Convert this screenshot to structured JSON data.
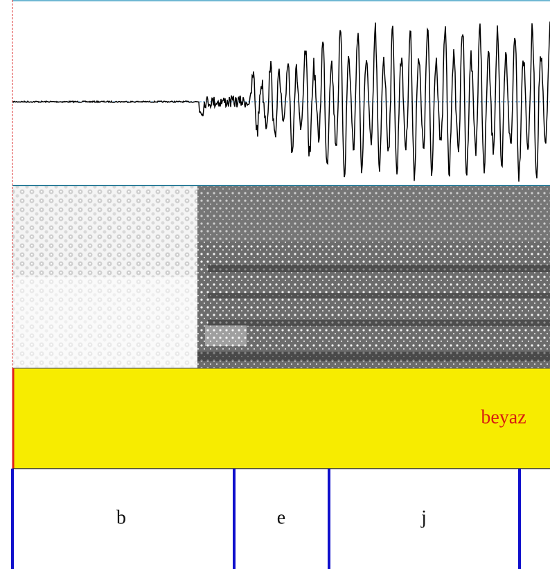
{
  "word_tier": {
    "label": "beyaz"
  },
  "phone_tier": {
    "labels": [
      "b",
      "e",
      "j"
    ]
  }
}
